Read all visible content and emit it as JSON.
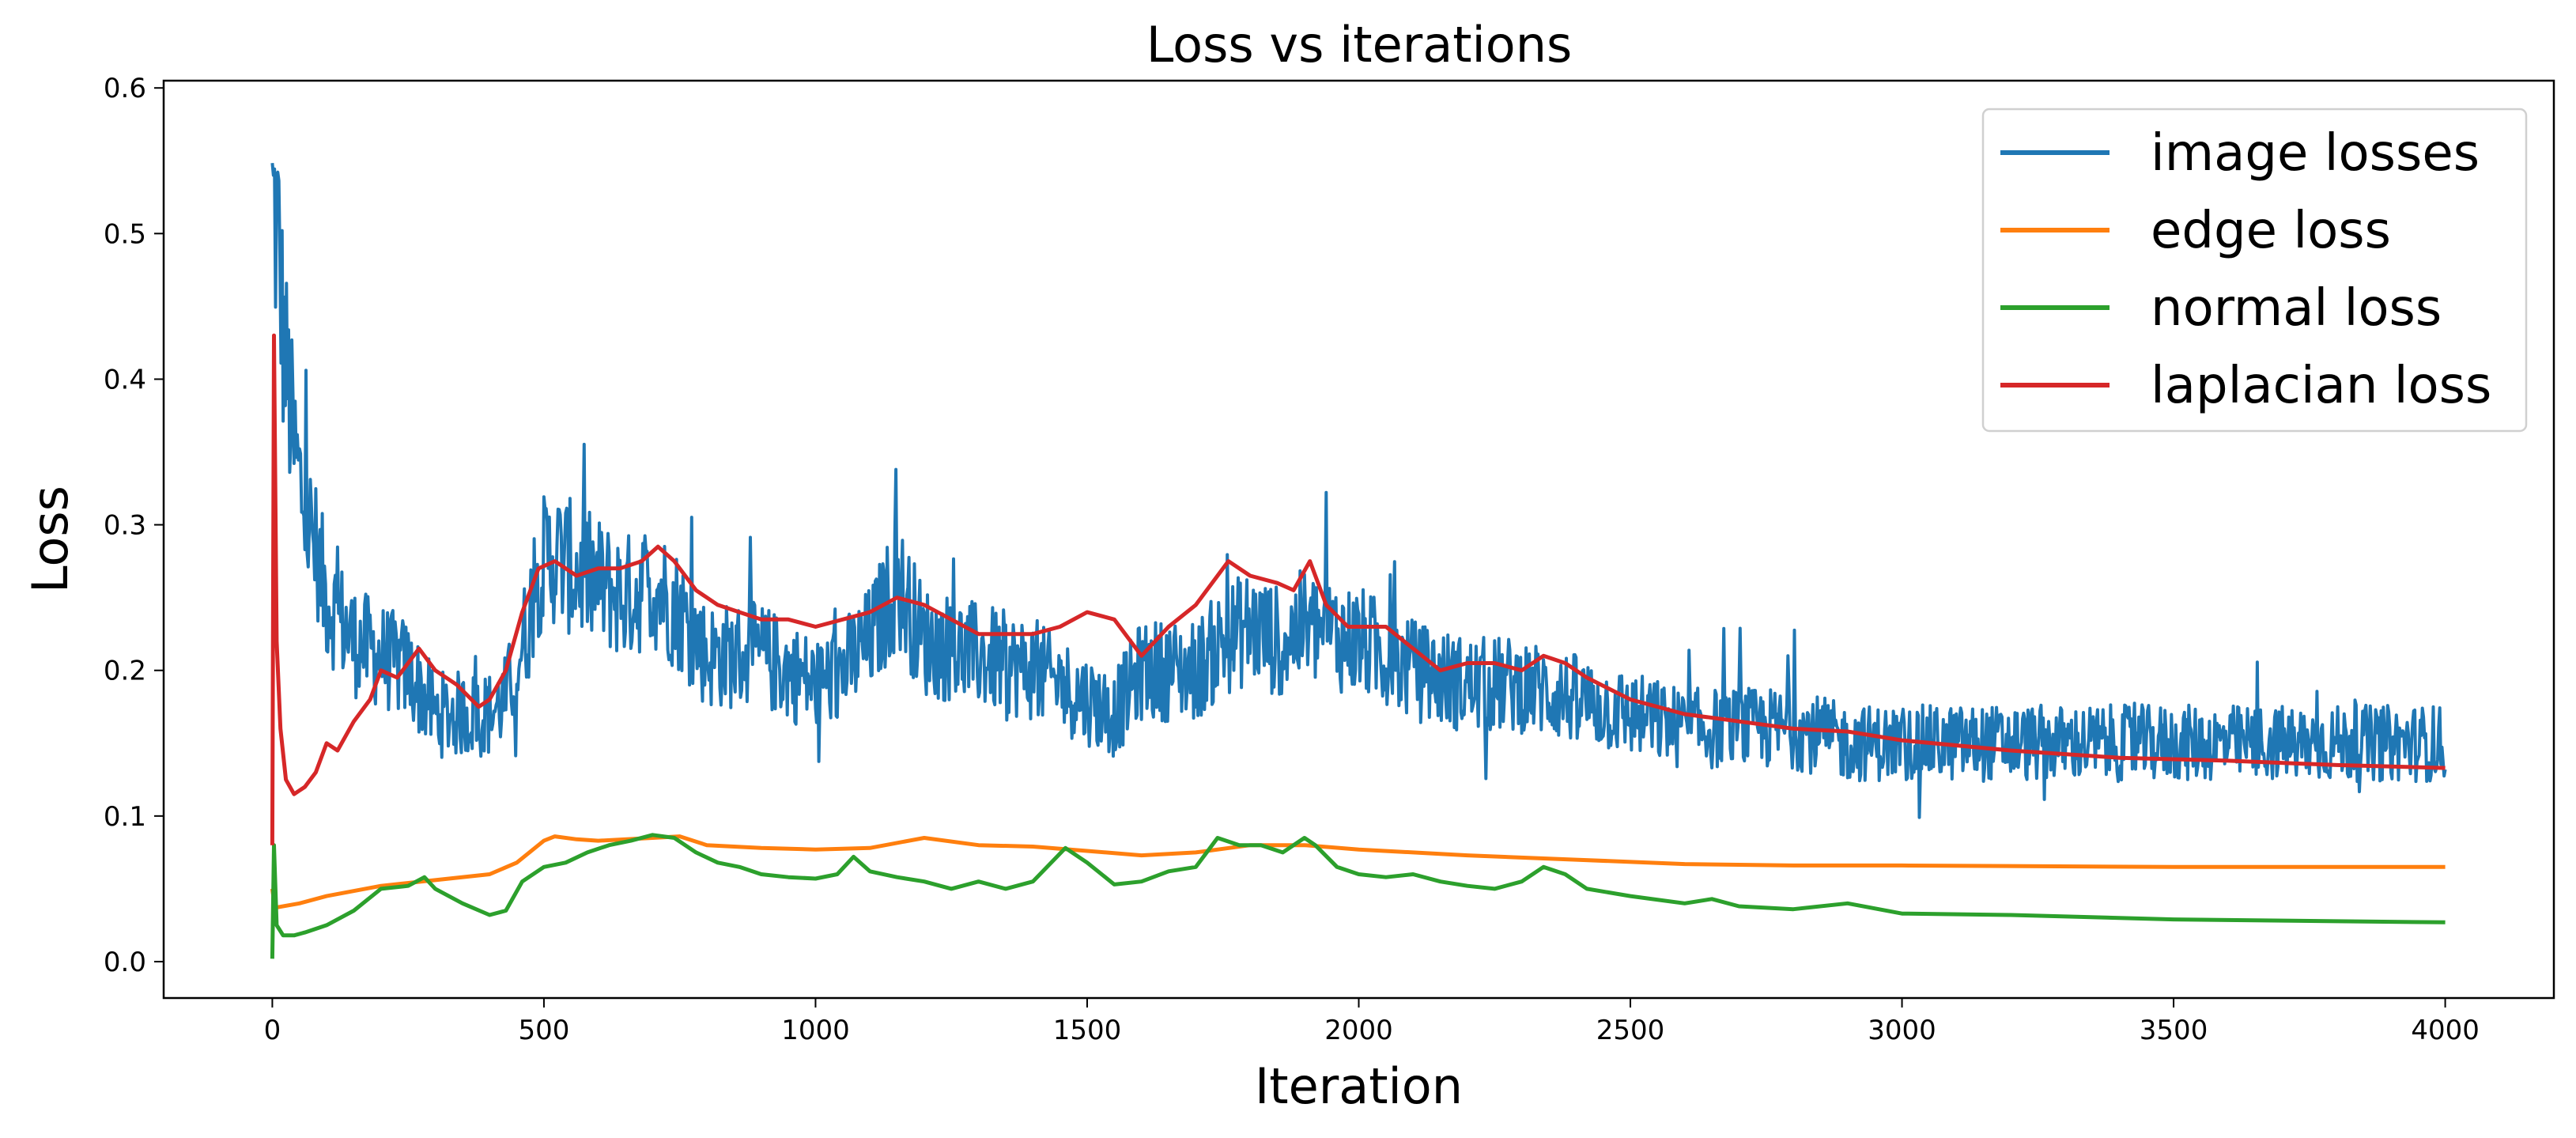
{
  "chart_data": {
    "type": "line",
    "title": "Loss vs iterations",
    "xlabel": "Iteration",
    "ylabel": "Loss",
    "xlim": [
      -200,
      4200
    ],
    "ylim": [
      -0.025,
      0.605
    ],
    "xticks": [
      0,
      500,
      1000,
      1500,
      2000,
      2500,
      3000,
      3500,
      4000
    ],
    "xtick_labels": [
      "0",
      "500",
      "1000",
      "1500",
      "2000",
      "2500",
      "3000",
      "3500",
      "4000"
    ],
    "yticks": [
      0.0,
      0.1,
      0.2,
      0.3,
      0.4,
      0.5,
      0.6
    ],
    "ytick_labels": [
      "0.0",
      "0.1",
      "0.2",
      "0.3",
      "0.4",
      "0.5",
      "0.6"
    ],
    "grid": false,
    "legend_position": "top-right",
    "series": [
      {
        "name": "image losses",
        "color": "#1f77b4",
        "noisy": true,
        "x": [
          0,
          10,
          20,
          40,
          60,
          80,
          100,
          150,
          200,
          250,
          300,
          350,
          400,
          430,
          470,
          490,
          520,
          550,
          600,
          650,
          700,
          750,
          800,
          900,
          1000,
          1050,
          1100,
          1150,
          1200,
          1300,
          1400,
          1500,
          1550,
          1600,
          1700,
          1750,
          1800,
          1850,
          1900,
          2000,
          2100,
          2200,
          2300,
          2400,
          2500,
          2600,
          2700,
          2800,
          2900,
          3000,
          3100,
          3200,
          3300,
          3400,
          3500,
          3600,
          3700,
          3800,
          3900,
          4000
        ],
        "y": [
          0.52,
          0.5,
          0.43,
          0.35,
          0.31,
          0.28,
          0.25,
          0.22,
          0.21,
          0.2,
          0.17,
          0.17,
          0.17,
          0.18,
          0.23,
          0.27,
          0.28,
          0.27,
          0.26,
          0.25,
          0.26,
          0.24,
          0.21,
          0.21,
          0.19,
          0.2,
          0.22,
          0.26,
          0.22,
          0.21,
          0.2,
          0.18,
          0.17,
          0.2,
          0.2,
          0.22,
          0.23,
          0.22,
          0.23,
          0.22,
          0.2,
          0.19,
          0.19,
          0.18,
          0.17,
          0.16,
          0.16,
          0.16,
          0.15,
          0.15,
          0.15,
          0.15,
          0.15,
          0.15,
          0.15,
          0.15,
          0.15,
          0.15,
          0.15,
          0.15
        ]
      },
      {
        "name": "edge loss",
        "color": "#ff7f0e",
        "x": [
          0,
          5,
          50,
          100,
          200,
          300,
          400,
          450,
          500,
          520,
          560,
          600,
          700,
          750,
          800,
          900,
          1000,
          1100,
          1200,
          1300,
          1400,
          1500,
          1600,
          1700,
          1800,
          1900,
          2000,
          2200,
          2400,
          2600,
          2800,
          3000,
          3500,
          4000
        ],
        "y": [
          0.05,
          0.037,
          0.04,
          0.045,
          0.052,
          0.056,
          0.06,
          0.068,
          0.083,
          0.086,
          0.084,
          0.083,
          0.085,
          0.086,
          0.08,
          0.078,
          0.077,
          0.078,
          0.085,
          0.08,
          0.079,
          0.076,
          0.073,
          0.075,
          0.08,
          0.08,
          0.077,
          0.073,
          0.07,
          0.067,
          0.066,
          0.066,
          0.065,
          0.065
        ]
      },
      {
        "name": "normal loss",
        "color": "#2ca02c",
        "x": [
          0,
          3,
          8,
          20,
          40,
          60,
          100,
          150,
          200,
          250,
          280,
          300,
          350,
          400,
          430,
          460,
          500,
          540,
          580,
          620,
          660,
          700,
          740,
          780,
          820,
          860,
          900,
          950,
          1000,
          1040,
          1070,
          1100,
          1150,
          1200,
          1250,
          1300,
          1350,
          1400,
          1460,
          1500,
          1550,
          1600,
          1650,
          1700,
          1740,
          1780,
          1820,
          1860,
          1900,
          1920,
          1960,
          2000,
          2050,
          2100,
          2150,
          2200,
          2250,
          2300,
          2340,
          2380,
          2420,
          2500,
          2600,
          2650,
          2700,
          2800,
          2900,
          3000,
          3200,
          3500,
          4000
        ],
        "y": [
          0.002,
          0.08,
          0.025,
          0.018,
          0.018,
          0.02,
          0.025,
          0.035,
          0.05,
          0.052,
          0.058,
          0.05,
          0.04,
          0.032,
          0.035,
          0.055,
          0.065,
          0.068,
          0.075,
          0.08,
          0.083,
          0.087,
          0.085,
          0.075,
          0.068,
          0.065,
          0.06,
          0.058,
          0.057,
          0.06,
          0.072,
          0.062,
          0.058,
          0.055,
          0.05,
          0.055,
          0.05,
          0.055,
          0.078,
          0.068,
          0.053,
          0.055,
          0.062,
          0.065,
          0.085,
          0.08,
          0.08,
          0.075,
          0.085,
          0.08,
          0.065,
          0.06,
          0.058,
          0.06,
          0.055,
          0.052,
          0.05,
          0.055,
          0.065,
          0.06,
          0.05,
          0.045,
          0.04,
          0.043,
          0.038,
          0.036,
          0.04,
          0.033,
          0.032,
          0.029,
          0.027
        ]
      },
      {
        "name": "laplacian loss",
        "color": "#d62728",
        "x": [
          0,
          3,
          8,
          15,
          25,
          40,
          60,
          80,
          100,
          120,
          150,
          180,
          200,
          230,
          270,
          300,
          340,
          380,
          400,
          430,
          460,
          490,
          520,
          560,
          600,
          640,
          680,
          710,
          740,
          780,
          820,
          860,
          900,
          950,
          1000,
          1050,
          1100,
          1150,
          1200,
          1250,
          1300,
          1350,
          1400,
          1450,
          1500,
          1550,
          1600,
          1650,
          1700,
          1730,
          1760,
          1800,
          1850,
          1880,
          1910,
          1940,
          1980,
          2050,
          2100,
          2150,
          2200,
          2250,
          2300,
          2340,
          2380,
          2420,
          2500,
          2600,
          2700,
          2800,
          2900,
          3000,
          3200,
          3400,
          3600,
          3800,
          4000
        ],
        "y": [
          0.08,
          0.43,
          0.22,
          0.16,
          0.125,
          0.115,
          0.12,
          0.13,
          0.15,
          0.145,
          0.165,
          0.18,
          0.2,
          0.195,
          0.215,
          0.2,
          0.19,
          0.175,
          0.18,
          0.2,
          0.24,
          0.27,
          0.275,
          0.265,
          0.27,
          0.27,
          0.275,
          0.285,
          0.275,
          0.255,
          0.245,
          0.24,
          0.235,
          0.235,
          0.23,
          0.235,
          0.24,
          0.25,
          0.245,
          0.235,
          0.225,
          0.225,
          0.225,
          0.23,
          0.24,
          0.235,
          0.21,
          0.23,
          0.245,
          0.26,
          0.275,
          0.265,
          0.26,
          0.255,
          0.275,
          0.245,
          0.23,
          0.23,
          0.215,
          0.2,
          0.205,
          0.205,
          0.2,
          0.21,
          0.205,
          0.195,
          0.18,
          0.17,
          0.165,
          0.16,
          0.158,
          0.152,
          0.145,
          0.14,
          0.138,
          0.135,
          0.133
        ]
      }
    ]
  }
}
